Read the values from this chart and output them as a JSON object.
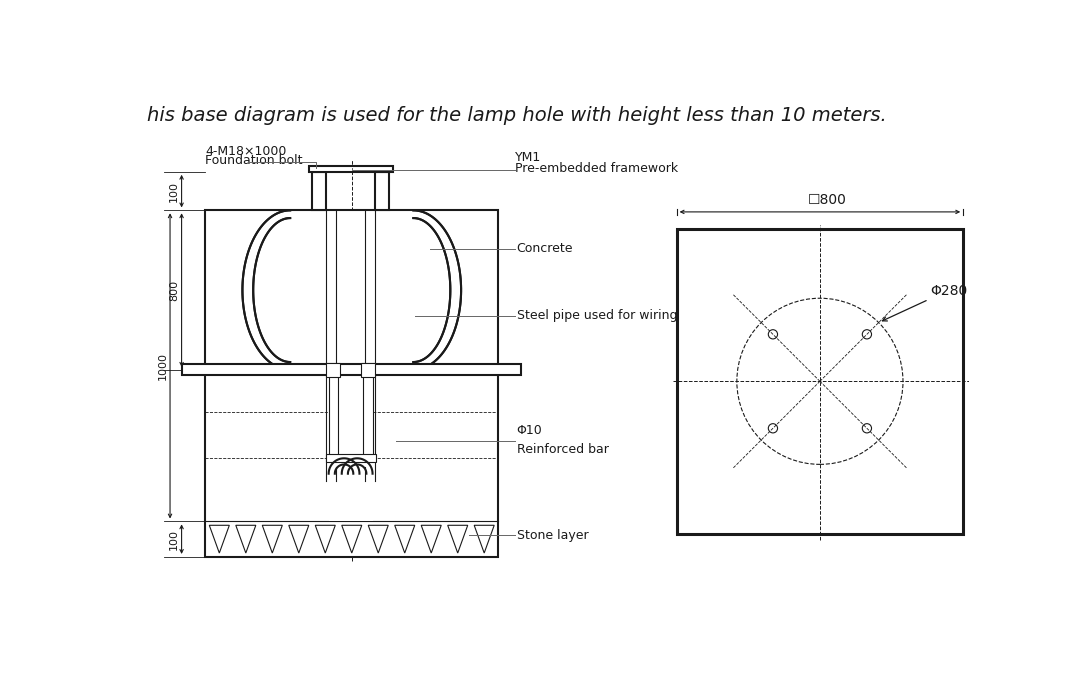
{
  "title": "his base diagram is used for the lamp hole with height less than 10 meters.",
  "bg_color": "#ffffff",
  "line_color": "#1a1a1a",
  "label_fontsize": 9,
  "title_fontsize": 14,
  "annotations": {
    "bolt": "4-M18×1000",
    "bolt2": "Foundation bolt",
    "ym1": "YM1",
    "ym1_2": "Pre-embedded framework",
    "concrete": "Concrete",
    "steel_pipe": "Steel pipe used for wiring",
    "phi10": "Φ10",
    "phi10_2": "Reinforced bar",
    "stone": "Stone layer",
    "dim_800": "☐800",
    "dim_280": "Φ280"
  }
}
